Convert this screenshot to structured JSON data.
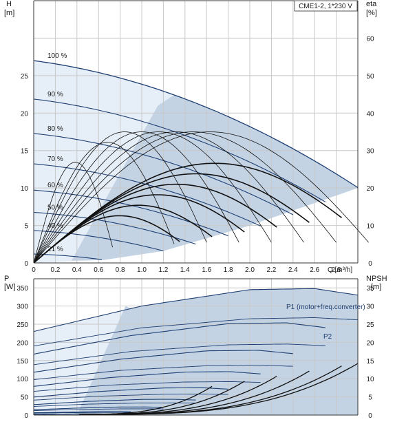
{
  "chart_data": [
    {
      "type": "line",
      "title": "CME1-2, 1*230 V",
      "ylabel_left": "H",
      "ylabel_left_unit": "[m]",
      "ylabel_right": "eta",
      "ylabel_right_unit": "[%]",
      "xlabel": "Q [m³/h]",
      "xlim": [
        0,
        3.0
      ],
      "ylim_left": [
        0,
        35
      ],
      "ylim_right": [
        0,
        70
      ],
      "xticks": [
        0,
        0.2,
        0.4,
        0.6,
        0.8,
        1.0,
        1.2,
        1.4,
        1.6,
        1.8,
        2.0,
        2.2,
        2.4,
        2.6,
        2.8
      ],
      "xtick_labels": [
        "0",
        "0.2",
        "0.4",
        "0.6",
        "0.8",
        "1.0",
        "1.2",
        "1.4",
        "1.6",
        "1.8",
        "2.0",
        "2.2",
        "2.4",
        "2.6",
        "2.8"
      ],
      "yticks_left": [
        0,
        5,
        10,
        15,
        20,
        25
      ],
      "yticks_right": [
        0,
        10,
        20,
        30,
        40,
        50,
        60
      ],
      "grid": true,
      "speed_labels": [
        "100 %",
        "90 %",
        "80 %",
        "70 %",
        "60 %",
        "50 %",
        "40 %",
        "21 %"
      ],
      "speed_fractions": [
        1.0,
        0.9,
        0.8,
        0.7,
        0.6,
        0.5,
        0.4,
        0.21
      ],
      "head_curve_100pct": {
        "x": [
          0,
          0.5,
          1.0,
          1.5,
          2.0,
          2.5,
          3.0
        ],
        "y": [
          27.0,
          26.0,
          23.6,
          20.2,
          16.2,
          12.0,
          10.0
        ]
      },
      "eta_curve_100pct": {
        "x": [
          0,
          0.8,
          1.6,
          2.0,
          2.4,
          2.8,
          3.0
        ],
        "y": [
          0,
          25.0,
          33.5,
          35.0,
          35.0,
          32.4,
          30.3
        ]
      },
      "colors": {
        "curve": "#1f3f73",
        "eta": "#111111",
        "area": "#c3d3e4",
        "area_light": "#e6eef7",
        "grid": "#c8c8c8"
      }
    },
    {
      "type": "line",
      "ylabel_left": "P",
      "ylabel_left_unit": "[W]",
      "ylabel_right": "NPSH",
      "ylabel_right_unit": "[m]",
      "xlim": [
        0,
        3.0
      ],
      "ylim_left": [
        0,
        375
      ],
      "ylim_right": [
        0,
        37.5
      ],
      "yticks_left": [
        0,
        50,
        100,
        150,
        200,
        250,
        300,
        350
      ],
      "yticks_right": [
        0,
        5,
        10,
        15,
        20,
        25,
        30,
        35
      ],
      "grid": true,
      "series": [
        {
          "name": "P1 (motor+freq.converter)",
          "x": [
            0,
            1.0,
            2.0,
            2.6,
            3.0
          ],
          "y": [
            230,
            300,
            345,
            348,
            330
          ]
        },
        {
          "name": "P2",
          "x": [
            0,
            1.0,
            2.0,
            2.6,
            3.0
          ],
          "y": [
            190,
            240,
            265,
            268,
            262
          ]
        }
      ],
      "npsh_max_curve": {
        "x": [
          0.5,
          1.0,
          1.5,
          2.0,
          2.5,
          3.0
        ],
        "y": [
          0.2,
          0.5,
          1.2,
          2.5,
          5.5,
          14.5
        ]
      }
    }
  ]
}
